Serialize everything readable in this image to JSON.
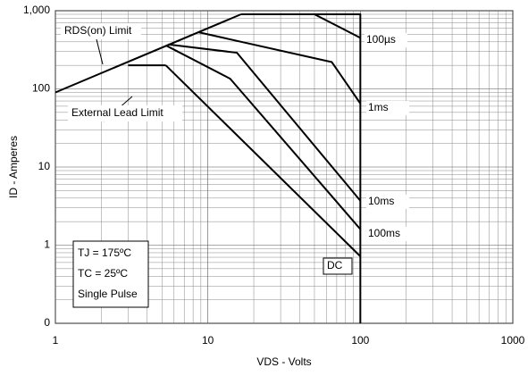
{
  "chart_data": {
    "type": "line",
    "xlabel": "VDS - Volts",
    "ylabel": "ID - Amperes",
    "log_x": true,
    "log_y": true,
    "grid": true,
    "xlim": [
      1,
      1000
    ],
    "xticks": [
      1,
      10,
      100,
      1000
    ],
    "ylim": [
      0.1,
      1000
    ],
    "yticks": [
      {
        "value": 0.1,
        "label": "0"
      },
      1,
      10,
      100,
      {
        "value": 1000,
        "label": "1,000"
      }
    ],
    "series": [
      {
        "name": "RDS(on) Limit",
        "color": "#000000",
        "x": [
          1,
          16.5
        ],
        "values": [
          90,
          900
        ]
      },
      {
        "name": "External Lead Limit",
        "color": "#000000",
        "x": [
          3,
          5.3
        ],
        "values": [
          200,
          200
        ]
      },
      {
        "color": "#000000",
        "x": [
          16.5,
          100,
          100
        ],
        "values": [
          900,
          900,
          0.1
        ]
      },
      {
        "name": "100µs",
        "color": "#000000",
        "x": [
          50,
          100
        ],
        "values": [
          900,
          450
        ]
      },
      {
        "name": "1ms",
        "color": "#000000",
        "x": [
          8.7,
          65,
          100
        ],
        "values": [
          530,
          220,
          65
        ]
      },
      {
        "name": "10ms",
        "color": "#000000",
        "x": [
          5.5,
          15.5,
          100
        ],
        "values": [
          370,
          290,
          3.7
        ]
      },
      {
        "name": "100ms",
        "color": "#000000",
        "x": [
          5.3,
          14,
          100
        ],
        "values": [
          360,
          135,
          1.6
        ]
      },
      {
        "name": "DC",
        "color": "#000000",
        "x": [
          5.3,
          100
        ],
        "values": [
          200,
          0.72
        ]
      }
    ],
    "notes": [
      "TJ = 175ºC",
      "TC = 25ºC",
      "Single Pulse"
    ]
  }
}
